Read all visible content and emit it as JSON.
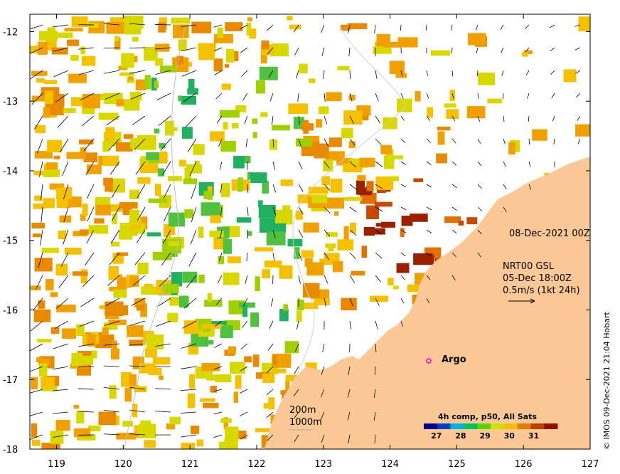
{
  "map": {
    "date_label": "08-Dec-2021 00Z",
    "current_label_1": "NRT00 GSL",
    "current_label_2": "05-Dec 18:00Z",
    "current_label_3": "0.5m/s (1kt 24h)",
    "argo_label": "Argo",
    "contour_200": "200m",
    "contour_1000": "1000m",
    "credit": "© IMOS 09-Dec-2021 21:04 Hobart",
    "land_color": "#fcc996",
    "argo_color": "#e000e0"
  },
  "colorbar": {
    "title": "4h comp, p50, All Sats",
    "ticks": [
      "27",
      "28",
      "29",
      "30",
      "31"
    ],
    "colors": [
      "#00008b",
      "#0040c0",
      "#00b0e0",
      "#00c060",
      "#60d000",
      "#d0e000",
      "#f0c000",
      "#e08000",
      "#c04000",
      "#8b1000"
    ]
  },
  "chart_data": {
    "type": "heatmap",
    "xlabel": "",
    "ylabel": "",
    "x_ticks": [
      "119",
      "120",
      "121",
      "122",
      "123",
      "124",
      "125",
      "126",
      "127"
    ],
    "y_ticks": [
      "-12",
      "-13",
      "-14",
      "-15",
      "-16",
      "-17",
      "-18"
    ],
    "xlim": [
      118.6,
      127
    ],
    "ylim": [
      -18,
      -11.75
    ],
    "colorbar_range": [
      26.5,
      32
    ]
  }
}
